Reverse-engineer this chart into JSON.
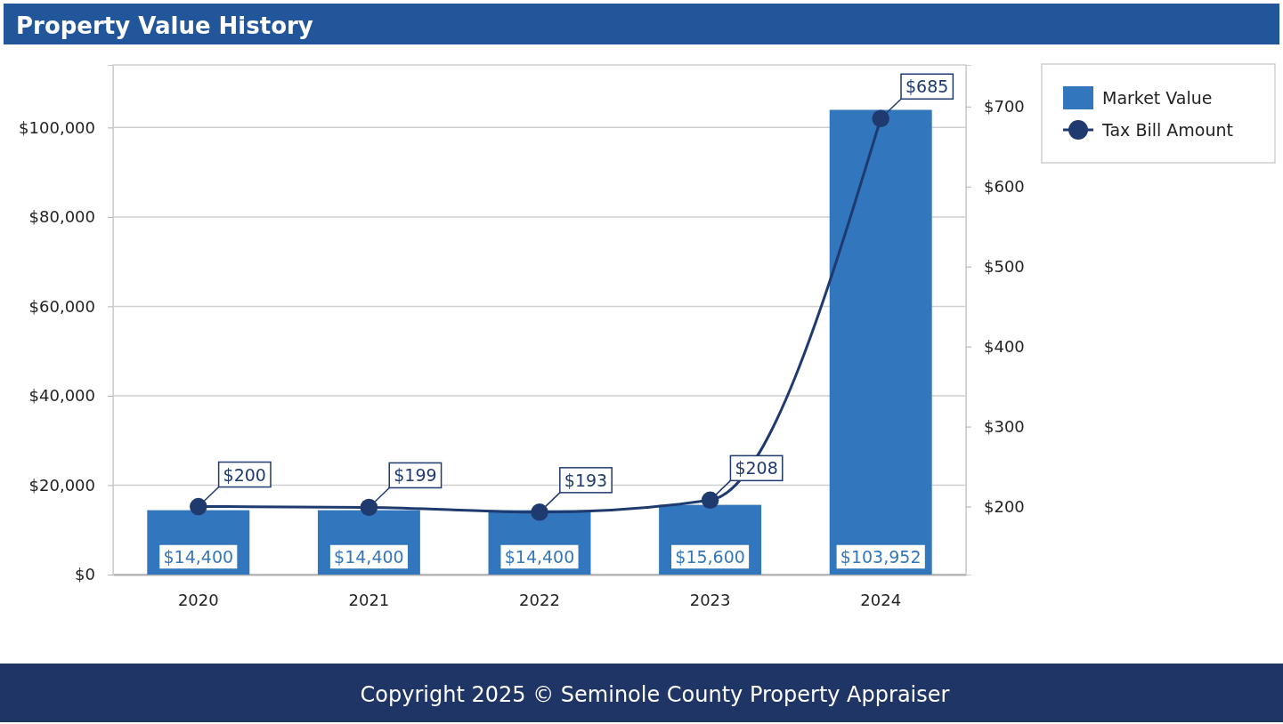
{
  "chart_data": {
    "type": "bar",
    "title": "Property Value History",
    "categories": [
      "2020",
      "2021",
      "2022",
      "2023",
      "2024"
    ],
    "series": [
      {
        "name": "Market Value",
        "color": "#3277bd",
        "values": [
          14400,
          14400,
          14400,
          15600,
          103952
        ],
        "value_labels": [
          "$14,400",
          "$14,400",
          "$14,400",
          "$15,600",
          "$103,952"
        ]
      },
      {
        "name": "Tax Bill Amount",
        "type": "line",
        "axis": "y2",
        "color": "#1f3a6e",
        "values": [
          200,
          199,
          193,
          208,
          685
        ],
        "value_labels": [
          "$200",
          "$199",
          "$193",
          "$208",
          "$685"
        ]
      }
    ],
    "ylim": [
      0,
      114000
    ],
    "yticks": [
      {
        "value": 0,
        "label": "$0"
      },
      {
        "value": 20000,
        "label": "$20,000"
      },
      {
        "value": 40000,
        "label": "$40,000"
      },
      {
        "value": 60000,
        "label": "$60,000"
      },
      {
        "value": 80000,
        "label": "$80,000"
      },
      {
        "value": 100000,
        "label": "$100,000"
      }
    ],
    "y2lim": [
      115,
      752
    ],
    "y2ticks": [
      {
        "value": 200,
        "label": "$200"
      },
      {
        "value": 300,
        "label": "$300"
      },
      {
        "value": 400,
        "label": "$400"
      },
      {
        "value": 500,
        "label": "$500"
      },
      {
        "value": 600,
        "label": "$600"
      },
      {
        "value": 700,
        "label": "$700"
      }
    ],
    "grid": "y",
    "legend": "top right",
    "marker": "circle",
    "line_style": "solid",
    "annotations": [
      "Copyright 2025 © Seminole County Property Appraiser"
    ]
  }
}
